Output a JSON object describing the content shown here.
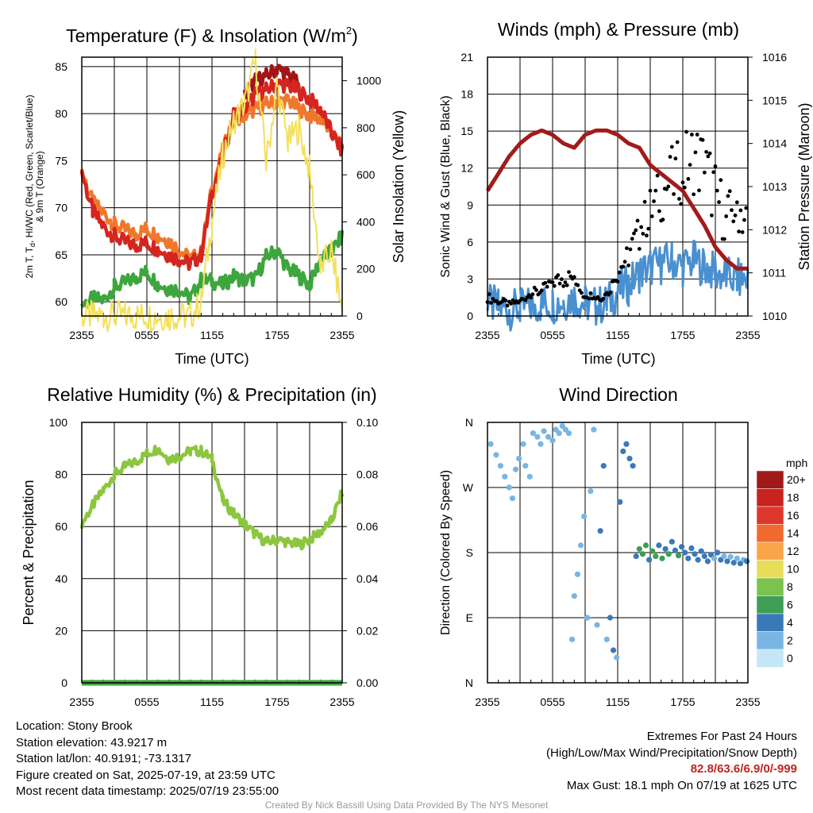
{
  "panels": {
    "temperature": {
      "title_main": "Temperature (F) & Insolation (W/m",
      "title_sup": "2",
      "title_end": ")",
      "ylabel_lines": [
        "2m T, T",
        "d",
        ", HI/WC (Red, Green, Scarlet/Blue)",
        "& 9m T (Orange)"
      ],
      "y2label": "Solar Insolation (Yellow)",
      "xlabel": "Time (UTC)"
    },
    "winds": {
      "title": "Winds (mph) & Pressure (mb)",
      "ylabel": "Sonic Wind & Gust (Blue, Black)",
      "y2label": "Station Pressure (Maroon)",
      "xlabel": "Time (UTC)"
    },
    "humidity": {
      "title": "Relative Humidity (%) & Precipitation (in)",
      "ylabel": "Percent & Precipitation"
    },
    "direction": {
      "title": "Wind Direction",
      "ylabel": "Direction (Colored By Speed)",
      "legend_title": "mph",
      "legend_labels": [
        "20+",
        "18",
        "16",
        "14",
        "12",
        "10",
        "8",
        "6",
        "4",
        "2",
        "0"
      ],
      "legend_colors": [
        "#a01a1a",
        "#c7231f",
        "#e0372c",
        "#f06a2e",
        "#f9a54a",
        "#e8dc58",
        "#7bc24f",
        "#3e9e55",
        "#3a79b8",
        "#79b5e2",
        "#c5e6f7"
      ]
    }
  },
  "info": {
    "location": "Location: Stony Brook",
    "elevation": "Station elevation: 43.9217 m",
    "latlon": "Station lat/lon: 40.9191; -73.1317",
    "created": "Figure created on Sat, 2025-07-19, at 23:59 UTC",
    "recent": "Most recent data timestamp: 2025/07/19 23:55:00",
    "extremes_title": "Extremes For Past 24 Hours",
    "extremes_sub": "(High/Low/Max Wind/Precipitation/Snow Depth)",
    "extremes_values": "82.8/63.6/6.9/0/-999",
    "max_gust": "Max Gust: 18.1 mph On 07/19 at 1625 UTC",
    "credit": "Created By Nick Bassill Using Data Provided By The NYS Mesonet"
  },
  "chart_data": [
    {
      "id": "temperature",
      "type": "line",
      "x_ticks": [
        "2355",
        "0555",
        "1155",
        "1755",
        "2355"
      ],
      "x": [
        0,
        1,
        2,
        3,
        4,
        5,
        6,
        7,
        8,
        9,
        10,
        11,
        12,
        13,
        14,
        15,
        16,
        17,
        18,
        19,
        20,
        21,
        22,
        23,
        24
      ],
      "ylim": [
        58.5,
        86
      ],
      "y_ticks": [
        60,
        65,
        70,
        75,
        80,
        85
      ],
      "y2lim": [
        0,
        1100
      ],
      "y2_ticks": [
        0,
        200,
        400,
        600,
        800,
        1000
      ],
      "grid": true,
      "series": [
        {
          "name": "9m T",
          "color": "#f0782c",
          "axis": "left",
          "values": [
            74.0,
            70.5,
            69.5,
            68.2,
            67.6,
            67.2,
            67.8,
            67.0,
            66.5,
            65.5,
            64.5,
            65.2,
            72.0,
            76.0,
            79.5,
            79.8,
            80.5,
            81.0,
            81.3,
            81.4,
            80.5,
            79.8,
            79.5,
            78.0,
            76.2
          ]
        },
        {
          "name": "HI/WC",
          "color": "#a21515",
          "axis": "left",
          "values": [
            null,
            null,
            null,
            null,
            null,
            null,
            null,
            null,
            null,
            null,
            null,
            null,
            null,
            null,
            null,
            82.0,
            83.5,
            84.0,
            84.8,
            84.2,
            83.0,
            null,
            null,
            null,
            null
          ]
        },
        {
          "name": "2m T",
          "color": "#d52520",
          "axis": "left",
          "values": [
            73.8,
            69.6,
            68.0,
            67.0,
            66.3,
            66.0,
            66.3,
            65.6,
            65.0,
            64.5,
            64.0,
            65.0,
            71.5,
            75.5,
            79.8,
            80.5,
            82.0,
            82.5,
            83.2,
            83.0,
            82.4,
            81.5,
            80.5,
            78.0,
            76.0
          ]
        },
        {
          "name": "Td",
          "color": "#3da63d",
          "axis": "left",
          "values": [
            59.7,
            60.3,
            60.2,
            61.6,
            62.0,
            62.6,
            63.2,
            61.9,
            61.4,
            61.3,
            60.3,
            62.3,
            62.2,
            61.8,
            62.7,
            62.3,
            62.5,
            64.8,
            65.5,
            63.5,
            62.8,
            61.8,
            64.5,
            65.3,
            67.0
          ]
        },
        {
          "name": "Solar Insolation",
          "color": "#f2e05a",
          "axis": "right",
          "values": [
            0,
            0,
            0,
            0,
            0,
            0,
            0,
            0,
            0,
            0,
            0,
            60,
            400,
            680,
            830,
            900,
            1080,
            650,
            980,
            740,
            800,
            620,
            200,
            280,
            20
          ]
        }
      ]
    },
    {
      "id": "winds",
      "type": "line",
      "x_ticks": [
        "2355",
        "0555",
        "1155",
        "1755",
        "2355"
      ],
      "x": [
        0,
        1,
        2,
        3,
        4,
        5,
        6,
        7,
        8,
        9,
        10,
        11,
        12,
        13,
        14,
        15,
        16,
        17,
        18,
        19,
        20,
        21,
        22,
        23,
        24
      ],
      "ylim": [
        0,
        21
      ],
      "y_ticks": [
        0,
        3,
        6,
        9,
        12,
        15,
        18,
        21
      ],
      "y2lim": [
        1010,
        1016
      ],
      "y2_ticks": [
        1010,
        1011,
        1012,
        1013,
        1014,
        1015,
        1016
      ],
      "grid": true,
      "series": [
        {
          "name": "Sonic Wind",
          "color": "#4a90d0",
          "axis": "left",
          "values": [
            1.0,
            0.7,
            0.5,
            0.6,
            0.8,
            1.0,
            1.0,
            1.2,
            1.5,
            1.0,
            0.8,
            1.0,
            2.0,
            2.5,
            3.5,
            4.0,
            4.2,
            4.5,
            4.0,
            4.5,
            4.0,
            3.5,
            3.2,
            3.0,
            3.0
          ]
        },
        {
          "name": "Gust",
          "color": "#000000",
          "axis": "left",
          "style": "points",
          "values": [
            1.5,
            1.2,
            1.0,
            1.2,
            1.8,
            2.0,
            2.8,
            3.0,
            3.2,
            2.0,
            1.5,
            1.7,
            3.5,
            5.0,
            7.0,
            8.5,
            10.0,
            11.0,
            12.0,
            13.0,
            12.0,
            10.0,
            8.0,
            9.0,
            7.5
          ]
        },
        {
          "name": "Station Pressure",
          "color": "#a21a1a",
          "axis": "right",
          "values": [
            1012.9,
            1013.3,
            1013.7,
            1014.0,
            1014.2,
            1014.3,
            1014.2,
            1014.0,
            1013.9,
            1014.2,
            1014.3,
            1014.3,
            1014.2,
            1014.0,
            1013.9,
            1013.5,
            1013.3,
            1013.1,
            1012.9,
            1012.5,
            1012.1,
            1011.6,
            1011.3,
            1011.1,
            1011.1
          ]
        }
      ]
    },
    {
      "id": "humidity",
      "type": "line",
      "x_ticks": [
        "2355",
        "0555",
        "1155",
        "1755",
        "2355"
      ],
      "x": [
        0,
        1,
        2,
        3,
        4,
        5,
        6,
        7,
        8,
        9,
        10,
        11,
        12,
        13,
        14,
        15,
        16,
        17,
        18,
        19,
        20,
        21,
        22,
        23,
        24
      ],
      "ylim": [
        0,
        100
      ],
      "y_ticks": [
        0,
        20,
        40,
        60,
        80,
        100
      ],
      "y2lim": [
        0,
        0.1
      ],
      "y2_ticks": [
        "0.00",
        "0.02",
        "0.04",
        "0.06",
        "0.08",
        "0.10"
      ],
      "grid": true,
      "series": [
        {
          "name": "Relative Humidity",
          "color": "#8cc63f",
          "axis": "left",
          "values": [
            61,
            68,
            74,
            80,
            83,
            85,
            88,
            90,
            86,
            87,
            89,
            89,
            86,
            70,
            65,
            61,
            57,
            54,
            55,
            54,
            53,
            55,
            58,
            62,
            73
          ]
        },
        {
          "name": "Precipitation",
          "color": "#3da63d",
          "axis": "right",
          "values": [
            0,
            0,
            0,
            0,
            0,
            0,
            0,
            0,
            0,
            0,
            0,
            0,
            0,
            0,
            0,
            0,
            0,
            0,
            0,
            0,
            0,
            0,
            0,
            0,
            0
          ]
        }
      ]
    },
    {
      "id": "direction",
      "type": "scatter",
      "x_ticks": [
        "2355",
        "0555",
        "1155",
        "1755",
        "2355"
      ],
      "y_ticks": [
        "N",
        "E",
        "S",
        "W",
        "N"
      ],
      "ylim": [
        0,
        360
      ],
      "grid": true,
      "points": [
        {
          "x": 0.3,
          "y": 330,
          "speed": 1
        },
        {
          "x": 0.8,
          "y": 315,
          "speed": 1
        },
        {
          "x": 1.2,
          "y": 300,
          "speed": 1
        },
        {
          "x": 1.6,
          "y": 285,
          "speed": 1
        },
        {
          "x": 2.0,
          "y": 270,
          "speed": 2
        },
        {
          "x": 2.3,
          "y": 255,
          "speed": 1
        },
        {
          "x": 2.6,
          "y": 295,
          "speed": 1
        },
        {
          "x": 2.9,
          "y": 310,
          "speed": 2
        },
        {
          "x": 3.3,
          "y": 330,
          "speed": 1
        },
        {
          "x": 3.5,
          "y": 300,
          "speed": 1
        },
        {
          "x": 3.9,
          "y": 285,
          "speed": 2
        },
        {
          "x": 4.2,
          "y": 345,
          "speed": 1
        },
        {
          "x": 4.6,
          "y": 340,
          "speed": 1
        },
        {
          "x": 4.9,
          "y": 330,
          "speed": 2
        },
        {
          "x": 5.2,
          "y": 348,
          "speed": 1
        },
        {
          "x": 5.6,
          "y": 340,
          "speed": 1
        },
        {
          "x": 6.0,
          "y": 335,
          "speed": 1
        },
        {
          "x": 6.3,
          "y": 350,
          "speed": 1
        },
        {
          "x": 6.6,
          "y": 345,
          "speed": 1
        },
        {
          "x": 6.9,
          "y": 355,
          "speed": 1
        },
        {
          "x": 7.2,
          "y": 350,
          "speed": 2
        },
        {
          "x": 7.5,
          "y": 345,
          "speed": 1
        },
        {
          "x": 7.8,
          "y": 60,
          "speed": 1
        },
        {
          "x": 8.0,
          "y": 120,
          "speed": 1
        },
        {
          "x": 8.3,
          "y": 150,
          "speed": 1
        },
        {
          "x": 8.6,
          "y": 190,
          "speed": 1
        },
        {
          "x": 8.9,
          "y": 230,
          "speed": 1
        },
        {
          "x": 9.2,
          "y": 90,
          "speed": 1
        },
        {
          "x": 9.5,
          "y": 265,
          "speed": 2
        },
        {
          "x": 9.8,
          "y": 350,
          "speed": 1
        },
        {
          "x": 10.1,
          "y": 80,
          "speed": 2
        },
        {
          "x": 10.4,
          "y": 210,
          "speed": 3
        },
        {
          "x": 10.7,
          "y": 300,
          "speed": 3
        },
        {
          "x": 11.0,
          "y": 60,
          "speed": 2
        },
        {
          "x": 11.3,
          "y": 90,
          "speed": 3
        },
        {
          "x": 11.6,
          "y": 45,
          "speed": 3
        },
        {
          "x": 11.9,
          "y": 35,
          "speed": 2
        },
        {
          "x": 12.2,
          "y": 250,
          "speed": 4
        },
        {
          "x": 12.5,
          "y": 320,
          "speed": 4
        },
        {
          "x": 12.8,
          "y": 330,
          "speed": 4
        },
        {
          "x": 13.1,
          "y": 310,
          "speed": 4
        },
        {
          "x": 13.4,
          "y": 300,
          "speed": 4
        },
        {
          "x": 13.7,
          "y": 175,
          "speed": 4
        },
        {
          "x": 14.0,
          "y": 185,
          "speed": 5
        },
        {
          "x": 14.3,
          "y": 178,
          "speed": 5
        },
        {
          "x": 14.6,
          "y": 190,
          "speed": 6
        },
        {
          "x": 14.9,
          "y": 170,
          "speed": 4
        },
        {
          "x": 15.2,
          "y": 182,
          "speed": 5
        },
        {
          "x": 15.5,
          "y": 175,
          "speed": 6
        },
        {
          "x": 15.8,
          "y": 190,
          "speed": 4
        },
        {
          "x": 16.1,
          "y": 172,
          "speed": 6
        },
        {
          "x": 16.4,
          "y": 185,
          "speed": 4
        },
        {
          "x": 16.7,
          "y": 178,
          "speed": 5
        },
        {
          "x": 17.0,
          "y": 195,
          "speed": 4
        },
        {
          "x": 17.3,
          "y": 183,
          "speed": 4
        },
        {
          "x": 17.6,
          "y": 176,
          "speed": 6
        },
        {
          "x": 17.9,
          "y": 188,
          "speed": 4
        },
        {
          "x": 18.2,
          "y": 180,
          "speed": 4
        },
        {
          "x": 18.5,
          "y": 172,
          "speed": 4
        },
        {
          "x": 18.8,
          "y": 186,
          "speed": 3
        },
        {
          "x": 19.1,
          "y": 178,
          "speed": 3
        },
        {
          "x": 19.4,
          "y": 170,
          "speed": 4
        },
        {
          "x": 19.7,
          "y": 182,
          "speed": 3
        },
        {
          "x": 20.0,
          "y": 175,
          "speed": 3
        },
        {
          "x": 20.3,
          "y": 168,
          "speed": 3
        },
        {
          "x": 20.6,
          "y": 177,
          "speed": 3
        },
        {
          "x": 20.9,
          "y": 172,
          "speed": 2
        },
        {
          "x": 21.2,
          "y": 180,
          "speed": 3
        },
        {
          "x": 21.5,
          "y": 170,
          "speed": 3
        },
        {
          "x": 21.8,
          "y": 175,
          "speed": 2
        },
        {
          "x": 22.1,
          "y": 168,
          "speed": 3
        },
        {
          "x": 22.4,
          "y": 174,
          "speed": 2
        },
        {
          "x": 22.7,
          "y": 166,
          "speed": 3
        },
        {
          "x": 23.0,
          "y": 172,
          "speed": 2
        },
        {
          "x": 23.3,
          "y": 165,
          "speed": 3
        },
        {
          "x": 23.6,
          "y": 170,
          "speed": 2
        },
        {
          "x": 23.9,
          "y": 168,
          "speed": 3
        }
      ]
    }
  ]
}
